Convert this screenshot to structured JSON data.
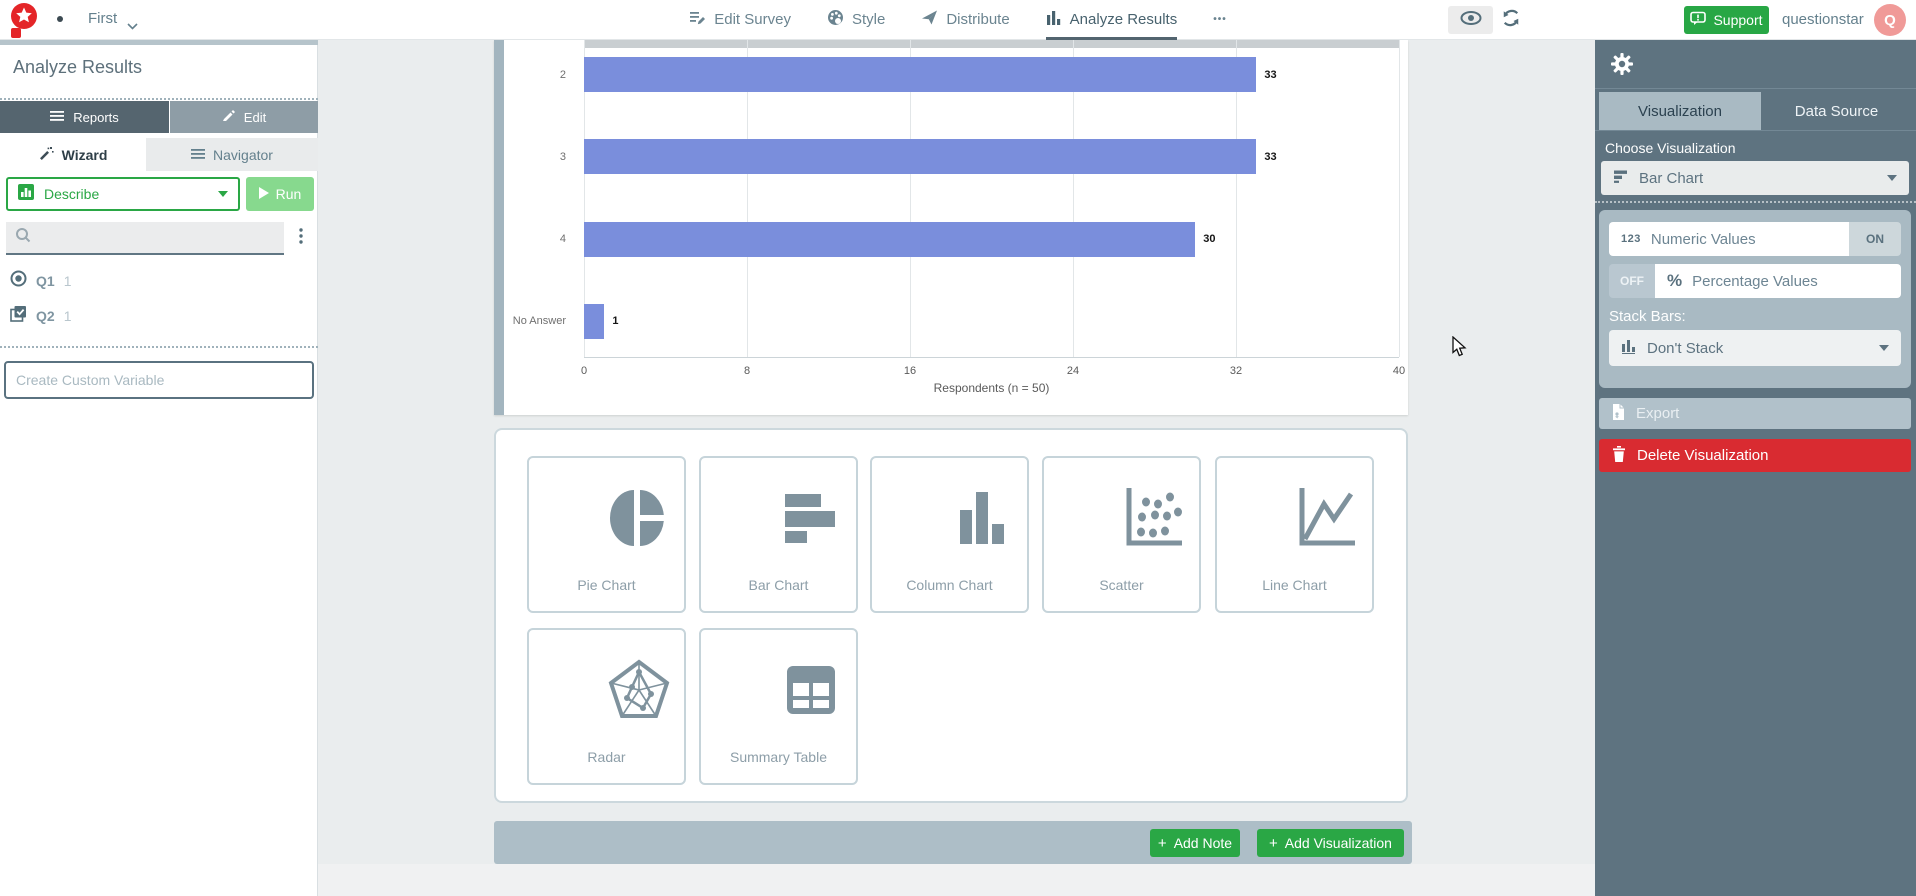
{
  "navbar": {
    "brand_dot": "•",
    "workspace_name": "First",
    "tabs": [
      {
        "label": "Edit Survey"
      },
      {
        "label": "Style"
      },
      {
        "label": "Distribute"
      },
      {
        "label": "Analyze Results"
      },
      {
        "label": "•••"
      }
    ],
    "support_label": "Support",
    "username": "questionstar",
    "avatar_initial": "Q"
  },
  "sidebar": {
    "title": "Analyze Results",
    "reports_label": "Reports",
    "edit_label": "Edit",
    "wizard_label": "Wizard",
    "navigator_label": "Navigator",
    "describe_label": "Describe",
    "run_label": "Run",
    "questions": [
      {
        "id": "Q1",
        "count": "1"
      },
      {
        "id": "Q2",
        "count": "1"
      }
    ],
    "create_variable_placeholder": "Create Custom Variable"
  },
  "chart_data": {
    "type": "bar",
    "orientation": "horizontal",
    "categories": [
      "2",
      "3",
      "4",
      "No Answer"
    ],
    "values": [
      33,
      33,
      30,
      1
    ],
    "value_labels": [
      "33",
      "33",
      "30",
      "1"
    ],
    "xlabel": "Respondents (n = 50)",
    "xticks": [
      0,
      8,
      16,
      24,
      32,
      40
    ],
    "xlim": [
      0,
      40
    ],
    "bar_color": "#7a8edc",
    "grid": true,
    "legend": false
  },
  "chart_types": [
    {
      "label": "Pie Chart"
    },
    {
      "label": "Bar Chart"
    },
    {
      "label": "Column Chart"
    },
    {
      "label": "Scatter"
    },
    {
      "label": "Line Chart"
    },
    {
      "label": "Radar"
    },
    {
      "label": "Summary Table"
    }
  ],
  "footer": {
    "plus": "+",
    "add_note_label": "Add Note",
    "add_visualization_label": "Add Visualization"
  },
  "panel": {
    "tab_visualization": "Visualization",
    "tab_data_source": "Data Source",
    "choose_visualization_label": "Choose Visualization",
    "visualization_value": "Bar Chart",
    "numeric": {
      "icon_text": "123",
      "label": "Numeric Values",
      "state": "ON"
    },
    "percentage": {
      "icon_text": "%",
      "label": "Percentage Values",
      "state": "OFF"
    },
    "stack_bars_label": "Stack Bars:",
    "stack_bars_value": "Don't Stack",
    "export_label": "Export",
    "delete_label": "Delete Visualization"
  },
  "colors": {
    "brand_red": "#e42528",
    "action_green": "#28a745",
    "bar_blue": "#7a8edc",
    "panel_slate": "#5e7380",
    "delete_red": "#d92b31"
  }
}
